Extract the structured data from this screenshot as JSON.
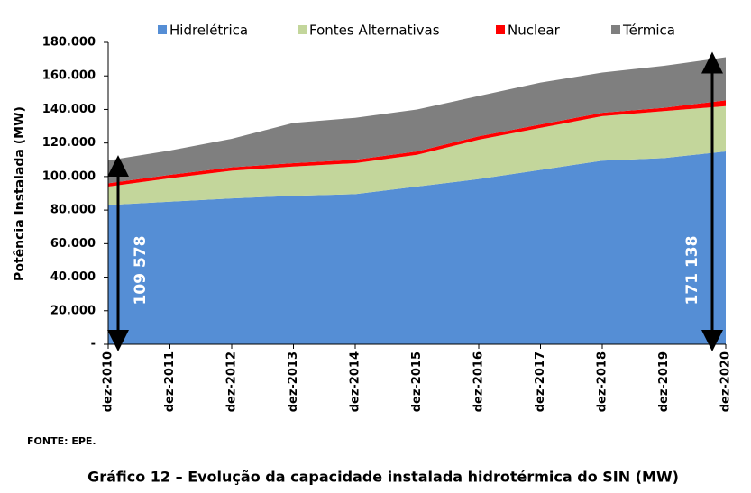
{
  "chart_data": {
    "type": "stacked-area",
    "title": "Gráfico 12 – Evolução da capacidade instalada hidrotérmica do SIN (MW)",
    "source": "FONTE: EPE.",
    "y_label": "Potência Instalada (MW)",
    "x": [
      "dez-2010",
      "dez-2011",
      "dez-2012",
      "dez-2013",
      "dez-2014",
      "dez-2015",
      "dez-2016",
      "dez-2017",
      "dez-2018",
      "dez-2019",
      "dez-2020"
    ],
    "series": [
      {
        "name": "Hidrelétrica",
        "color": "#558ed5",
        "values": [
          83000,
          85000,
          87000,
          88500,
          89500,
          94000,
          98500,
          104000,
          109500,
          111000,
          115000
        ]
      },
      {
        "name": "Fontes Alternativas",
        "color": "#c3d69b",
        "values": [
          11000,
          14000,
          16500,
          17500,
          18500,
          19000,
          23500,
          25000,
          26500,
          28000,
          27000
        ]
      },
      {
        "name": "Nuclear",
        "color": "#ff0000",
        "values": [
          2007,
          2007,
          2007,
          2007,
          2007,
          2007,
          2007,
          2007,
          2007,
          2007,
          3400
        ]
      },
      {
        "name": "Térmica",
        "color": "#7f7f7f",
        "values": [
          13571,
          14493,
          16993,
          23993,
          24993,
          24993,
          23993,
          24993,
          23993,
          24993,
          25738
        ]
      }
    ],
    "annotations": [
      {
        "text": "109 578",
        "x": 0
      },
      {
        "text": "171 138",
        "x": 10
      }
    ],
    "ylim": [
      0,
      180000
    ],
    "yticks": [
      {
        "value": 0,
        "label": "-"
      },
      {
        "value": 20000,
        "label": "20.000"
      },
      {
        "value": 40000,
        "label": "40.000"
      },
      {
        "value": 60000,
        "label": "60.000"
      },
      {
        "value": 80000,
        "label": "80.000"
      },
      {
        "value": 100000,
        "label": "100.000"
      },
      {
        "value": 120000,
        "label": "120.000"
      },
      {
        "value": 140000,
        "label": "140.000"
      },
      {
        "value": 160000,
        "label": "160.000"
      },
      {
        "value": 180000,
        "label": "180.000"
      }
    ],
    "legend": "top"
  }
}
